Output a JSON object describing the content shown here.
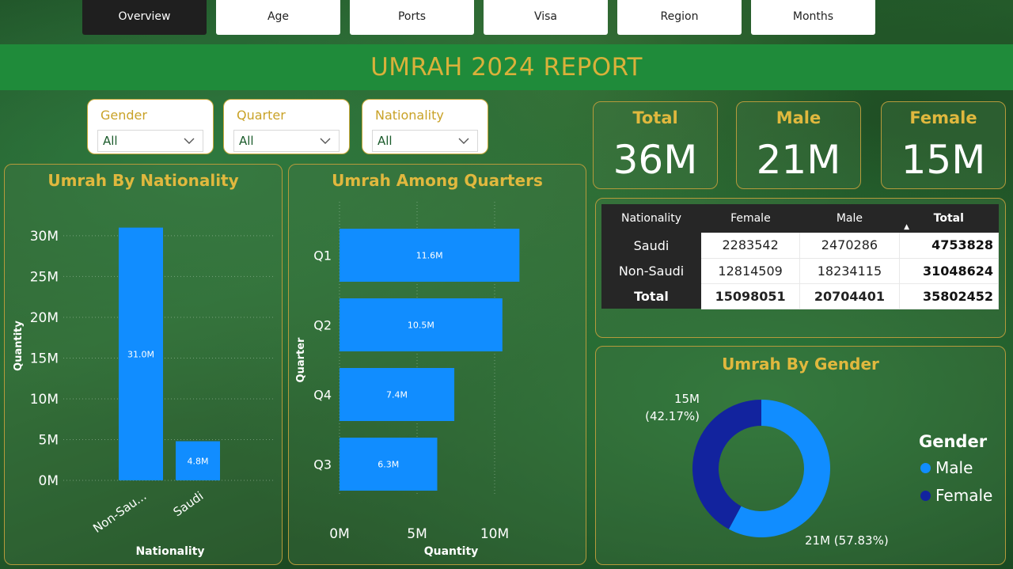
{
  "tabs": [
    {
      "label": "Overview",
      "active": true
    },
    {
      "label": "Age",
      "active": false
    },
    {
      "label": "Ports",
      "active": false
    },
    {
      "label": "Visa",
      "active": false
    },
    {
      "label": "Region",
      "active": false
    },
    {
      "label": "Months",
      "active": false
    }
  ],
  "report_title": "UMRAH 2024 REPORT",
  "filters": {
    "gender": {
      "label": "Gender",
      "value": "All"
    },
    "quarter": {
      "label": "Quarter",
      "value": "All"
    },
    "nationality": {
      "label": "Nationality",
      "value": "All"
    }
  },
  "kpis": {
    "total": {
      "label": "Total",
      "value": "36M"
    },
    "male": {
      "label": "Male",
      "value": "21M"
    },
    "female": {
      "label": "Female",
      "value": "15M"
    }
  },
  "colors": {
    "bar": "#118dff",
    "male": "#118dff",
    "female": "#12239e",
    "accent": "#e0b83e"
  },
  "matrix": {
    "headers": [
      "Nationality",
      "Female",
      "Male",
      "Total"
    ],
    "sort_indicator": "▲",
    "rows": [
      {
        "label": "Saudi",
        "female": "2283542",
        "male": "2470286",
        "total": "4753828"
      },
      {
        "label": "Non-Saudi",
        "female": "12814509",
        "male": "18234115",
        "total": "31048624"
      }
    ],
    "total_row": {
      "label": "Total",
      "female": "15098051",
      "male": "20704401",
      "total": "35802452"
    }
  },
  "chart_data": [
    {
      "type": "bar",
      "title": "Umrah By Nationality",
      "xlabel": "Nationality",
      "ylabel": "Quantity",
      "categories": [
        "Non-Sau...",
        "Saudi"
      ],
      "values": [
        31.0,
        4.8
      ],
      "data_labels": [
        "31.0M",
        "4.8M"
      ],
      "y_ticks": [
        "0M",
        "5M",
        "10M",
        "15M",
        "20M",
        "25M",
        "30M"
      ],
      "ylim": [
        0,
        33
      ],
      "unit": "M"
    },
    {
      "type": "bar",
      "orientation": "horizontal",
      "title": "Umrah Among Quarters",
      "xlabel": "Quantity",
      "ylabel": "Quarter",
      "categories": [
        "Q1",
        "Q2",
        "Q4",
        "Q3"
      ],
      "values": [
        11.6,
        10.5,
        7.4,
        6.3
      ],
      "data_labels": [
        "11.6M",
        "10.5M",
        "7.4M",
        "6.3M"
      ],
      "x_ticks": [
        "0M",
        "5M",
        "10M"
      ],
      "xlim": [
        0,
        12.5
      ],
      "unit": "M"
    },
    {
      "type": "pie",
      "donut": true,
      "title": "Umrah By Gender",
      "legend_title": "Gender",
      "legend_position": "right",
      "categories": [
        "Male",
        "Female"
      ],
      "values": [
        57.83,
        42.17
      ],
      "slice_labels": [
        {
          "value": "21M",
          "pct": "(57.83%)"
        },
        {
          "value": "15M",
          "pct": "(42.17%)"
        }
      ]
    }
  ]
}
